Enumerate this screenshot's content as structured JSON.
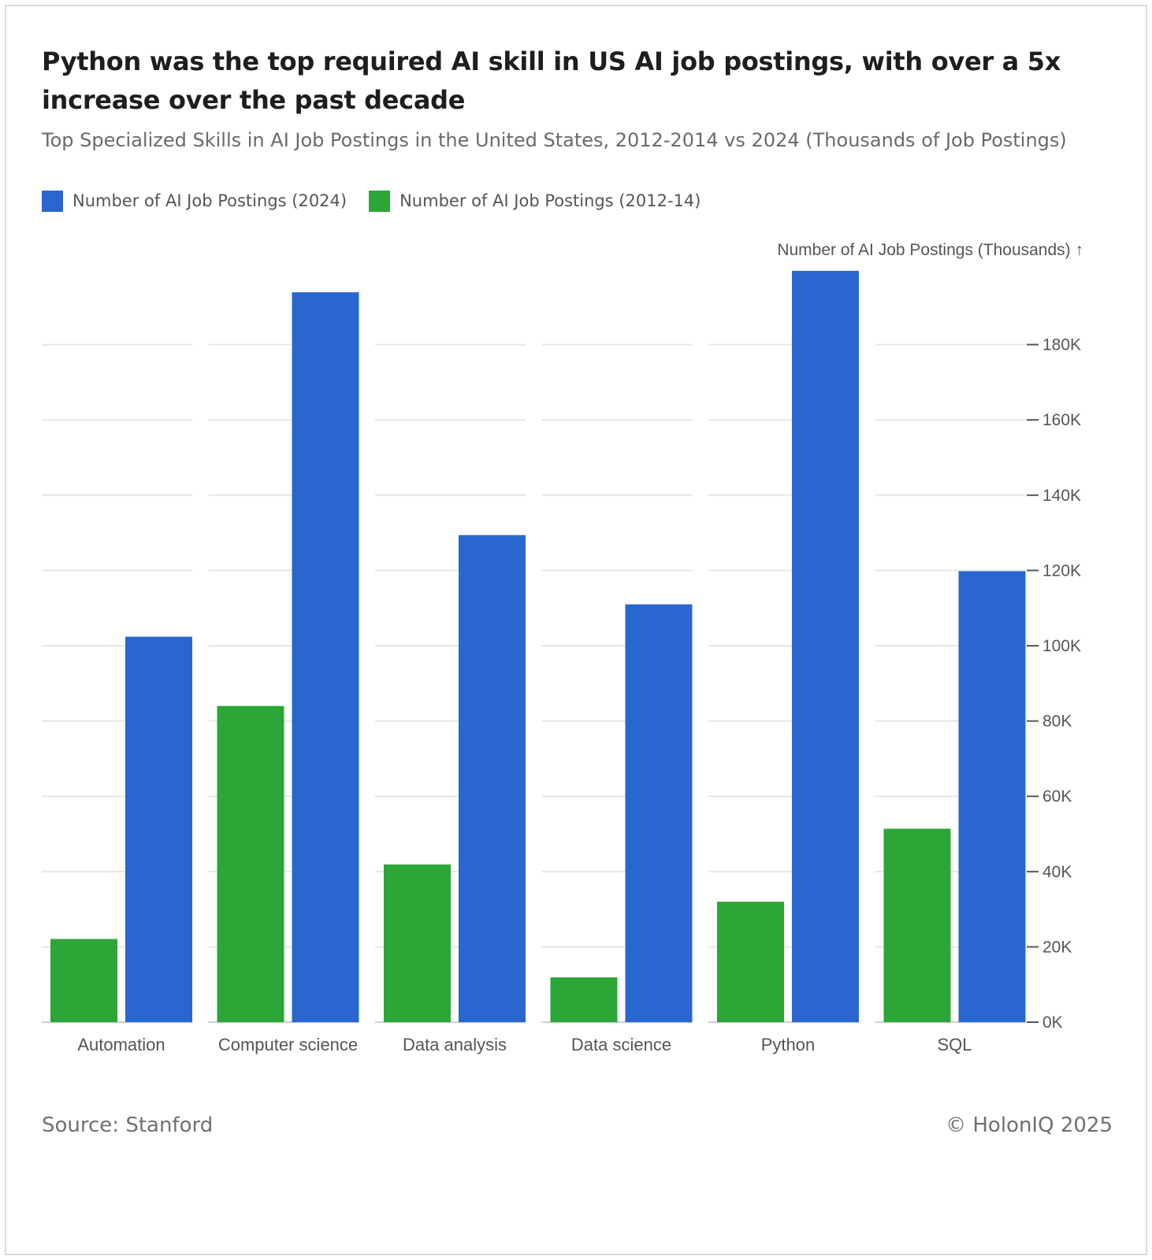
{
  "title": "Python was the top required AI skill in US AI job postings, with over a 5x increase over the past decade",
  "subtitle": "Top Specialized Skills in AI Job Postings in the United States, 2012-2014 vs 2024 (Thousands of Job Postings)",
  "source": "Source: Stanford",
  "copyright": "© HolonIQ 2025",
  "colors": {
    "series_2024": "#2a66cf",
    "series_2012_14": "#2ba637",
    "grid": "#e6e6e6",
    "axis_text": "#555555"
  },
  "chart_data": {
    "type": "bar",
    "title": "Python was the top required AI skill in US AI job postings, with over a 5x increase over the past decade",
    "subtitle": "Top Specialized Skills in AI Job Postings in the United States, 2012-2014 vs 2024 (Thousands of Job Postings)",
    "ylabel": "Number of AI Job Postings (Thousands) ↑",
    "categories": [
      "Automation",
      "Computer science",
      "Data analysis",
      "Data science",
      "Python",
      "SQL"
    ],
    "series": [
      {
        "name": "Number of AI Job Postings (2012-14)",
        "color": "#2ba637",
        "values": [
          22.1,
          84.0,
          41.9,
          11.9,
          32.0,
          51.4
        ]
      },
      {
        "name": "Number of AI Job Postings (2024)",
        "color": "#2a66cf",
        "values": [
          102.4,
          193.9,
          129.4,
          111.0,
          199.6,
          119.8
        ]
      }
    ],
    "legend_order": [
      "Number of AI Job Postings (2024)",
      "Number of AI Job Postings (2012-14)"
    ],
    "yticks": [
      0,
      20,
      40,
      60,
      80,
      100,
      120,
      140,
      160,
      180
    ],
    "ytick_labels": [
      "0K",
      "20K",
      "40K",
      "60K",
      "80K",
      "100K",
      "120K",
      "140K",
      "160K",
      "180K"
    ],
    "ylim": [
      0,
      200
    ],
    "grid": true,
    "yaxis_side": "right",
    "legend_position": "top-left"
  }
}
